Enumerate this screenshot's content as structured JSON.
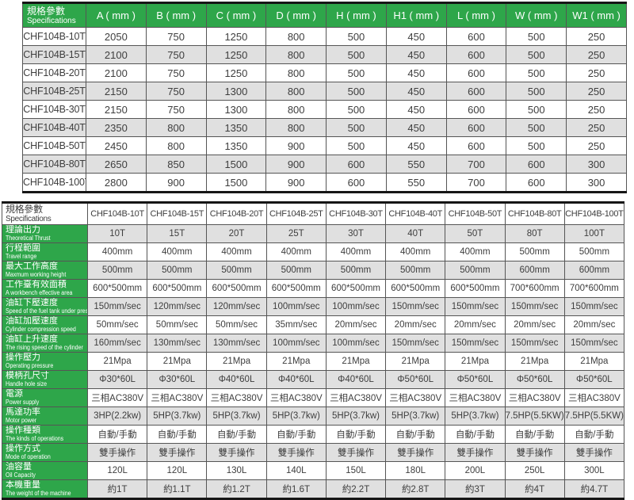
{
  "colors": {
    "header_green": "#2ea64a",
    "row_alt_gray": "#e0e0e0",
    "row_white": "#ffffff",
    "border_dark": "#555555",
    "outer_border": "#161616",
    "text_dark": "#3e3e3e",
    "header_text": "#ffffff"
  },
  "table1": {
    "title_zh": "規格參數",
    "title_en": "Specifications",
    "columns": [
      "A ( mm )",
      "B ( mm )",
      "C ( mm )",
      "D ( mm )",
      "H ( mm )",
      "H1 ( mm )",
      "L ( mm )",
      "W ( mm )",
      "W1 ( mm )"
    ],
    "rows": [
      {
        "model": "CHF104B-10T",
        "values": [
          "2050",
          "750",
          "1250",
          "800",
          "500",
          "450",
          "600",
          "500",
          "250"
        ]
      },
      {
        "model": "CHF104B-15T",
        "values": [
          "2100",
          "750",
          "1250",
          "800",
          "500",
          "450",
          "600",
          "500",
          "250"
        ]
      },
      {
        "model": "CHF104B-20T",
        "values": [
          "2100",
          "750",
          "1250",
          "800",
          "500",
          "450",
          "600",
          "500",
          "250"
        ]
      },
      {
        "model": "CHF104B-25T",
        "values": [
          "2150",
          "750",
          "1300",
          "800",
          "500",
          "450",
          "600",
          "500",
          "250"
        ]
      },
      {
        "model": "CHF104B-30T",
        "values": [
          "2150",
          "750",
          "1300",
          "800",
          "500",
          "450",
          "600",
          "500",
          "250"
        ]
      },
      {
        "model": "CHF104B-40T",
        "values": [
          "2350",
          "800",
          "1350",
          "800",
          "500",
          "450",
          "600",
          "500",
          "250"
        ]
      },
      {
        "model": "CHF104B-50T",
        "values": [
          "2450",
          "800",
          "1350",
          "900",
          "500",
          "450",
          "600",
          "500",
          "250"
        ]
      },
      {
        "model": "CHF104B-80T",
        "values": [
          "2650",
          "850",
          "1500",
          "900",
          "600",
          "550",
          "700",
          "600",
          "300"
        ]
      },
      {
        "model": "CHF104B-100T",
        "values": [
          "2800",
          "900",
          "1500",
          "900",
          "600",
          "550",
          "700",
          "600",
          "300"
        ]
      }
    ]
  },
  "table2": {
    "title_zh": "規格參數",
    "title_en": "Specifications",
    "columns": [
      "CHF104B-10T",
      "CHF104B-15T",
      "CHF104B-20T",
      "CHF104B-25T",
      "CHF104B-30T",
      "CHF104B-40T",
      "CHF104B-50T",
      "CHF104B-80T",
      "CHF104B-100T"
    ],
    "rows": [
      {
        "zh": "理論出力",
        "en": "Theoretical Thrust",
        "values": [
          "10T",
          "15T",
          "20T",
          "25T",
          "30T",
          "40T",
          "50T",
          "80T",
          "100T"
        ]
      },
      {
        "zh": "行程範圍",
        "en": "Travel range",
        "values": [
          "400mm",
          "400mm",
          "400mm",
          "400mm",
          "400mm",
          "400mm",
          "400mm",
          "500mm",
          "500mm"
        ]
      },
      {
        "zh": "最大工作高度",
        "en": "Maxmum working height",
        "values": [
          "500mm",
          "500mm",
          "500mm",
          "500mm",
          "500mm",
          "500mm",
          "500mm",
          "600mm",
          "600mm"
        ]
      },
      {
        "zh": "工作臺有效面積",
        "en": "A workbench effective area",
        "values": [
          "600*500mm",
          "600*500mm",
          "600*500mm",
          "600*500mm",
          "600*500mm",
          "600*500mm",
          "600*500mm",
          "700*600mm",
          "700*600mm"
        ]
      },
      {
        "zh": "油缸下壓速度",
        "en": "Speed of the fuel tank under pressure",
        "values": [
          "150mm/sec",
          "120mm/sec",
          "120mm/sec",
          "100mm/sec",
          "100mm/sec",
          "150mm/sec",
          "150mm/sec",
          "150mm/sec",
          "150mm/sec"
        ]
      },
      {
        "zh": "油缸加壓速度",
        "en": "Cylinder compression speed",
        "values": [
          "50mm/sec",
          "50mm/sec",
          "50mm/sec",
          "35mm/sec",
          "20mm/sec",
          "20mm/sec",
          "20mm/sec",
          "20mm/sec",
          "20mm/sec"
        ]
      },
      {
        "zh": "油缸上升速度",
        "en": "The rising speed of the cylinder",
        "values": [
          "160mm/sec",
          "130mm/sec",
          "130mm/sec",
          "100mm/sec",
          "100mm/sec",
          "150mm/sec",
          "150mm/sec",
          "150mm/sec",
          "150mm/sec"
        ]
      },
      {
        "zh": "操作壓力",
        "en": "Operating pressure",
        "values": [
          "21Mpa",
          "21Mpa",
          "21Mpa",
          "21Mpa",
          "21Mpa",
          "21Mpa",
          "21Mpa",
          "21Mpa",
          "21Mpa"
        ]
      },
      {
        "zh": "模柄孔尺寸",
        "en": "Handle hole size",
        "values": [
          "Φ30*60L",
          "Φ30*60L",
          "Φ40*60L",
          "Φ40*60L",
          "Φ40*60L",
          "Φ50*60L",
          "Φ50*60L",
          "Φ50*60L",
          "Φ50*60L"
        ]
      },
      {
        "zh": "電源",
        "en": "Power supply",
        "values": [
          "三相AC380V",
          "三相AC380V",
          "三相AC380V",
          "三相AC380V",
          "三相AC380V",
          "三相AC380V",
          "三相AC380V",
          "三相AC380V",
          "三相AC380V"
        ]
      },
      {
        "zh": "馬達功率",
        "en": "Motor power",
        "values": [
          "3HP(2.2kw)",
          "5HP(3.7kw)",
          "5HP(3.7kw)",
          "5HP(3.7kw)",
          "5HP(3.7kw)",
          "5HP(3.7kw)",
          "5HP(3.7kw)",
          "7.5HP(5.5KW)",
          "7.5HP(5.5KW)"
        ]
      },
      {
        "zh": "操作種類",
        "en": "The kinds of operations",
        "values": [
          "自動/手動",
          "自動/手動",
          "自動/手動",
          "自動/手動",
          "自動/手動",
          "自動/手動",
          "自動/手動",
          "自動/手動",
          "自動/手動"
        ]
      },
      {
        "zh": "操作方式",
        "en": "Mode of operation",
        "values": [
          "雙手操作",
          "雙手操作",
          "雙手操作",
          "雙手操作",
          "雙手操作",
          "雙手操作",
          "雙手操作",
          "雙手操作",
          "雙手操作"
        ]
      },
      {
        "zh": "油容量",
        "en": "Oil Capacity",
        "values": [
          "120L",
          "120L",
          "130L",
          "140L",
          "150L",
          "180L",
          "200L",
          "250L",
          "300L"
        ]
      },
      {
        "zh": "本機重量",
        "en": "The weight of the machine",
        "values": [
          "約1T",
          "約1.1T",
          "約1.2T",
          "約1.6T",
          "約2.2T",
          "約2.8T",
          "約3T",
          "約4T",
          "約4.7T"
        ]
      }
    ]
  }
}
